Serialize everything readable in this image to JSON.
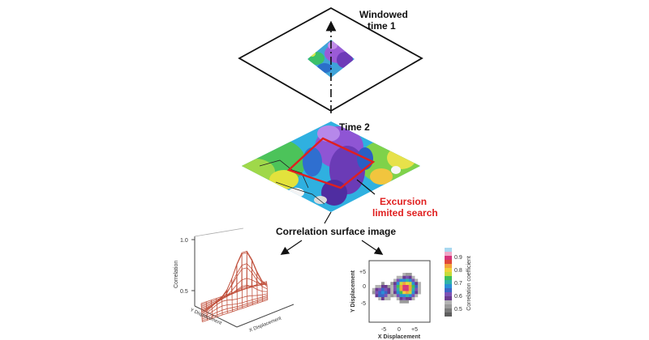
{
  "labels": {
    "windowed_line1": "Windowed",
    "windowed_line2": "time 1",
    "time2": "Time 2",
    "excursion_line1": "Excursion",
    "excursion_line2": "limited search",
    "surface_title": "Correlation surface image"
  },
  "surface3d": {
    "z_label": "Correlation",
    "z_ticks": [
      "1.0",
      "0.5"
    ],
    "x_label": "X Displacement",
    "y_label": "Y Displacement"
  },
  "heatmap": {
    "x_label": "X Displacement",
    "y_label": "Y Displacement",
    "x_ticks": [
      "-5",
      "0",
      "+5"
    ],
    "y_ticks": [
      "+5",
      "0",
      "-5"
    ],
    "colorbar_label": "Correlation coefficient",
    "colorbar_ticks": [
      "0.9",
      "0.8",
      "0.7",
      "0.6",
      "0.5"
    ]
  },
  "colors": {
    "excursion_red": "#e01f1f",
    "surface_line": "#c0503c"
  }
}
